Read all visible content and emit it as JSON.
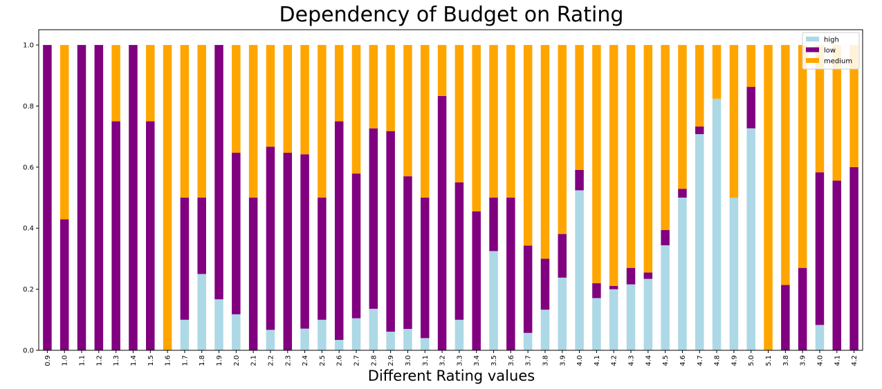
{
  "chart_data": {
    "type": "bar",
    "stacked": true,
    "title": "Dependency of Budget on Rating",
    "xlabel": "Different Rating values",
    "ylabel": "",
    "ylim": [
      0,
      1.05
    ],
    "yticks": [
      "0.0",
      "0.2",
      "0.4",
      "0.6",
      "0.8",
      "1.0"
    ],
    "legend_position": "top-right",
    "categories": [
      "0.9",
      "1.0",
      "1.1",
      "1.2",
      "1.3",
      "1.4",
      "1.5",
      "1.6",
      "1.7",
      "1.8",
      "1.9",
      "2.0",
      "2.1",
      "2.2",
      "2.3",
      "2.4",
      "2.5",
      "2.6",
      "2.7",
      "2.8",
      "2.9",
      "3.0",
      "3.1",
      "3.2",
      "3.3",
      "3.4",
      "3.5",
      "3.6",
      "3.7",
      "3.8",
      "3.9",
      "4.0",
      "4.1",
      "4.2",
      "4.3",
      "4.4",
      "4.5",
      "4.6",
      "4.7",
      "4.8",
      "4.9",
      "5.0",
      "5.1",
      "3.8",
      "3.9",
      "4.0",
      "4.1",
      "4.2"
    ],
    "series": [
      {
        "name": "high",
        "color": "#add8e6",
        "values": [
          0,
          0,
          0,
          0,
          0,
          0,
          0,
          0,
          0.1,
          0.25,
          0.167,
          0.118,
          0,
          0.067,
          0,
          0.071,
          0.1,
          0.034,
          0.105,
          0.136,
          0.061,
          0.07,
          0.04,
          0,
          0.1,
          0,
          0.325,
          0,
          0.057,
          0.133,
          0.238,
          0.524,
          0.171,
          0.2,
          0.216,
          0.234,
          0.344,
          0.5,
          0.708,
          0.824,
          0.5,
          0.727,
          0,
          0,
          0,
          0.083,
          0,
          0
        ]
      },
      {
        "name": "low",
        "color": "#800080",
        "values": [
          1,
          0.429,
          1,
          1,
          0.75,
          1,
          0.75,
          0,
          0.4,
          0.25,
          0.833,
          0.529,
          0.5,
          0.6,
          0.647,
          0.571,
          0.4,
          0.716,
          0.474,
          0.591,
          0.657,
          0.5,
          0.46,
          0.833,
          0.45,
          0.455,
          0.175,
          0.5,
          0.286,
          0.167,
          0.143,
          0.067,
          0.049,
          0.011,
          0.054,
          0.021,
          0.05,
          0.029,
          0.025,
          0,
          0,
          0.136,
          0,
          0.214,
          0.27,
          0.5,
          0.556,
          0.6
        ]
      },
      {
        "name": "medium",
        "color": "#ffa500",
        "values": [
          0,
          0.571,
          0,
          0,
          0.25,
          0,
          0.25,
          1,
          0.5,
          0.5,
          0,
          0.353,
          0.5,
          0.333,
          0.353,
          0.358,
          0.5,
          0.25,
          0.421,
          0.273,
          0.282,
          0.43,
          0.5,
          0.167,
          0.45,
          0.545,
          0.5,
          0.5,
          0.657,
          0.7,
          0.619,
          0.409,
          0.78,
          0.789,
          0.73,
          0.745,
          0.606,
          0.471,
          0.267,
          0.176,
          0.5,
          0.137,
          1,
          0.786,
          0.73,
          0.417,
          0.444,
          0.4
        ]
      }
    ]
  }
}
